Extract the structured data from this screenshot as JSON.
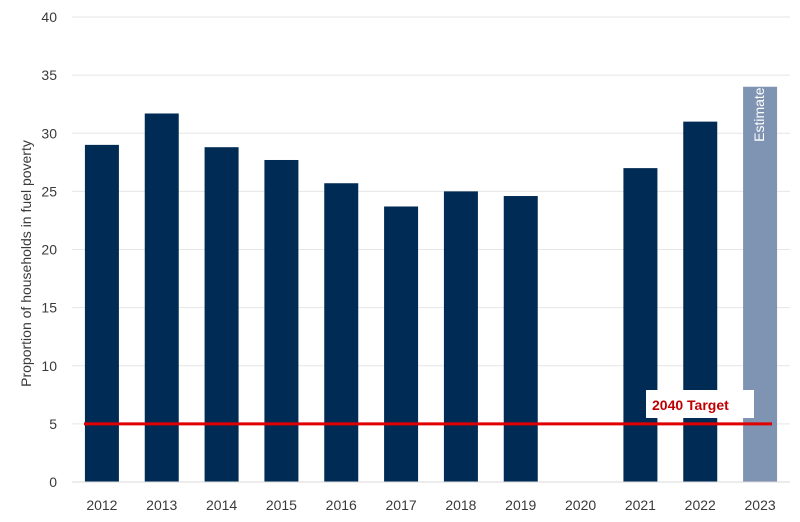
{
  "chart_data": {
    "type": "bar",
    "title": "",
    "xlabel": "",
    "ylabel": "Proportion of households in fuel poverty",
    "categories": [
      "2012",
      "2013",
      "2014",
      "2015",
      "2016",
      "2017",
      "2018",
      "2019",
      "2020",
      "2021",
      "2022",
      "2023"
    ],
    "values": [
      29.0,
      31.7,
      28.8,
      27.7,
      25.7,
      23.7,
      25.0,
      24.6,
      null,
      27.0,
      31.0,
      34.0
    ],
    "ylim": [
      0,
      40
    ],
    "yticks": [
      0,
      5,
      10,
      15,
      20,
      25,
      30,
      35,
      40
    ],
    "grid": true,
    "bar_color": "#002b54",
    "estimate": {
      "category": "2023",
      "label": "Estimate",
      "color": "#7f93b2"
    },
    "target": {
      "label": "2040 Target",
      "value": 5,
      "color": "#e00000",
      "label_color": "#c00000"
    }
  }
}
